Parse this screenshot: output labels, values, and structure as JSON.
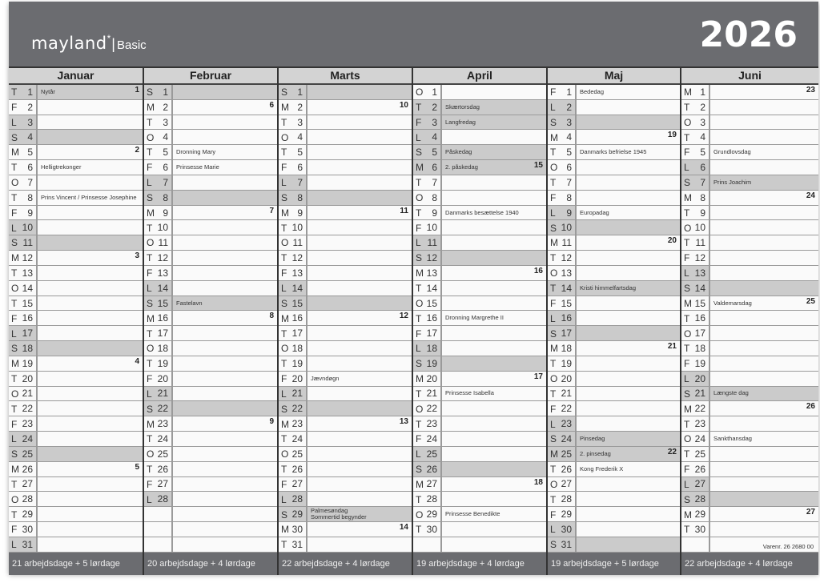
{
  "header": {
    "brand": "mayland",
    "brand_mark": "*",
    "product": "Basic",
    "year": "2026"
  },
  "colors": {
    "banner": "#6b6c70",
    "shaded": "#cbcbcb",
    "paper": "#fafafa",
    "month_header": "#d3d3d3"
  },
  "shading_rule": "Sundays and public holidays fully shaded; Saturdays shaded in day cell",
  "months": [
    {
      "name": "Januar",
      "weekdays": "TFLSMTOTFLSMTOTFLSMTOTFLSMTOTFL",
      "notes": {
        "1": "Nytår",
        "6": "Helligtrekonger",
        "8": "Prins Vincent / Prinsesse Josephine"
      },
      "weeks": {
        "1": "1",
        "5": "2",
        "12": "3",
        "19": "4",
        "26": "5"
      },
      "holidays": [
        1
      ],
      "footer": "21 arbejdsdage + 5 lørdage"
    },
    {
      "name": "Februar",
      "weekdays": "SMTOTFLSMTOTFLSMTOTFLSMTOTFL",
      "notes": {
        "5": "Dronning Mary",
        "6": "Prinsesse Marie",
        "15": "Fastelavn"
      },
      "weeks": {
        "2": "6",
        "9": "7",
        "16": "8",
        "23": "9"
      },
      "holidays": [],
      "footer": "20 arbejdsdage + 4 lørdage"
    },
    {
      "name": "Marts",
      "weekdays": "SMTOTFLSMTOTFLSMTOTFLSMTOTFLSMT",
      "notes": {
        "20": "Jævndøgn",
        "29": "Palmesøndag\nSommertid begynder"
      },
      "weeks": {
        "2": "10",
        "9": "11",
        "16": "12",
        "23": "13",
        "30": "14"
      },
      "holidays": [],
      "footer": "22 arbejdsdage + 4 lørdage"
    },
    {
      "name": "April",
      "weekdays": "OTFLSMTOTFLSMTOTFLSMTOTFLSMTOT",
      "notes": {
        "2": "Skærtorsdag",
        "3": "Langfredag",
        "5": "Påskedag",
        "6": "2. påskedag",
        "9": "Danmarks besættelse 1940",
        "16": "Dronning Margrethe II",
        "21": "Prinsesse Isabella",
        "29": "Prinsesse Benedikte"
      },
      "weeks": {
        "6": "15",
        "13": "16",
        "20": "17",
        "27": "18"
      },
      "holidays": [
        2,
        3,
        5,
        6
      ],
      "footer": "19 arbejdsdage + 4 lørdage"
    },
    {
      "name": "Maj",
      "weekdays": "FLSMTOTFLSMTOTFLSMTOTFLSMTOTFLS",
      "notes": {
        "1": "Bededag",
        "5": "Danmarks befrielse 1945",
        "9": "Europadag",
        "14": "Kristi himmelfartsdag",
        "24": "Pinsedag",
        "25": "2. pinsedag",
        "26": "Kong Frederik X"
      },
      "weeks": {
        "4": "19",
        "11": "20",
        "18": "21",
        "25": "22"
      },
      "holidays": [
        14,
        24,
        25
      ],
      "footer": "19 arbejdsdage + 5 lørdage"
    },
    {
      "name": "Juni",
      "weekdays": "MTOTFLSMTOTFLSMTOTFLSMTOTFLSMT",
      "notes": {
        "5": "Grundlovsdag",
        "7": "Prins Joachim",
        "15": "Valdemarsdag",
        "21": "Længste dag",
        "24": "Sankthansdag"
      },
      "weeks": {
        "1": "23",
        "8": "24",
        "15": "25",
        "22": "26",
        "29": "27"
      },
      "holidays": [],
      "footer": "22 arbejdsdage + 4 lørdage"
    }
  ],
  "varenr": "Varenr. 26 2680 00"
}
